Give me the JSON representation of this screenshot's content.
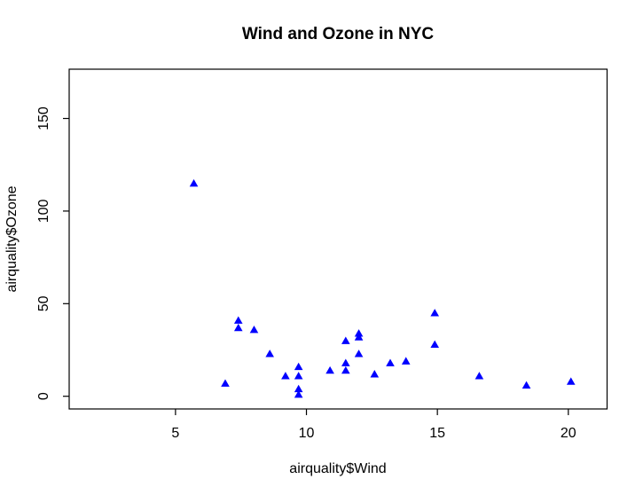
{
  "figure": {
    "kind": "R scatter plot",
    "background_color": "#FFFFFF"
  },
  "chart_data": {
    "type": "scatter",
    "title": "Wind and Ozone in NYC",
    "xlabel": "airquality$Wind",
    "ylabel": "airquality$Ozone",
    "x_ticks": [
      5,
      10,
      15,
      20
    ],
    "y_ticks": [
      0,
      50,
      100,
      150
    ],
    "xlim": [
      0.94,
      21.48
    ],
    "ylim": [
      -6.85,
      176.6
    ],
    "grid": false,
    "legend": "none",
    "marker": "filled-triangle-up",
    "marker_color": "#0000FF",
    "axis_color": "#000000",
    "points": [
      [
        7.4,
        41
      ],
      [
        8.0,
        36
      ],
      [
        12.6,
        12
      ],
      [
        11.5,
        18
      ],
      [
        14.9,
        28
      ],
      [
        8.6,
        23
      ],
      [
        13.8,
        19
      ],
      [
        20.1,
        8
      ],
      [
        6.9,
        7
      ],
      [
        9.7,
        16
      ],
      [
        9.2,
        11
      ],
      [
        10.9,
        14
      ],
      [
        13.2,
        18
      ],
      [
        11.5,
        14
      ],
      [
        12.0,
        34
      ],
      [
        18.4,
        6
      ],
      [
        11.5,
        30
      ],
      [
        9.7,
        11
      ],
      [
        9.7,
        1
      ],
      [
        16.6,
        11
      ],
      [
        9.7,
        4
      ],
      [
        12.0,
        32
      ],
      [
        12.0,
        23
      ],
      [
        14.9,
        45
      ],
      [
        5.7,
        115
      ],
      [
        7.4,
        37
      ]
    ]
  }
}
